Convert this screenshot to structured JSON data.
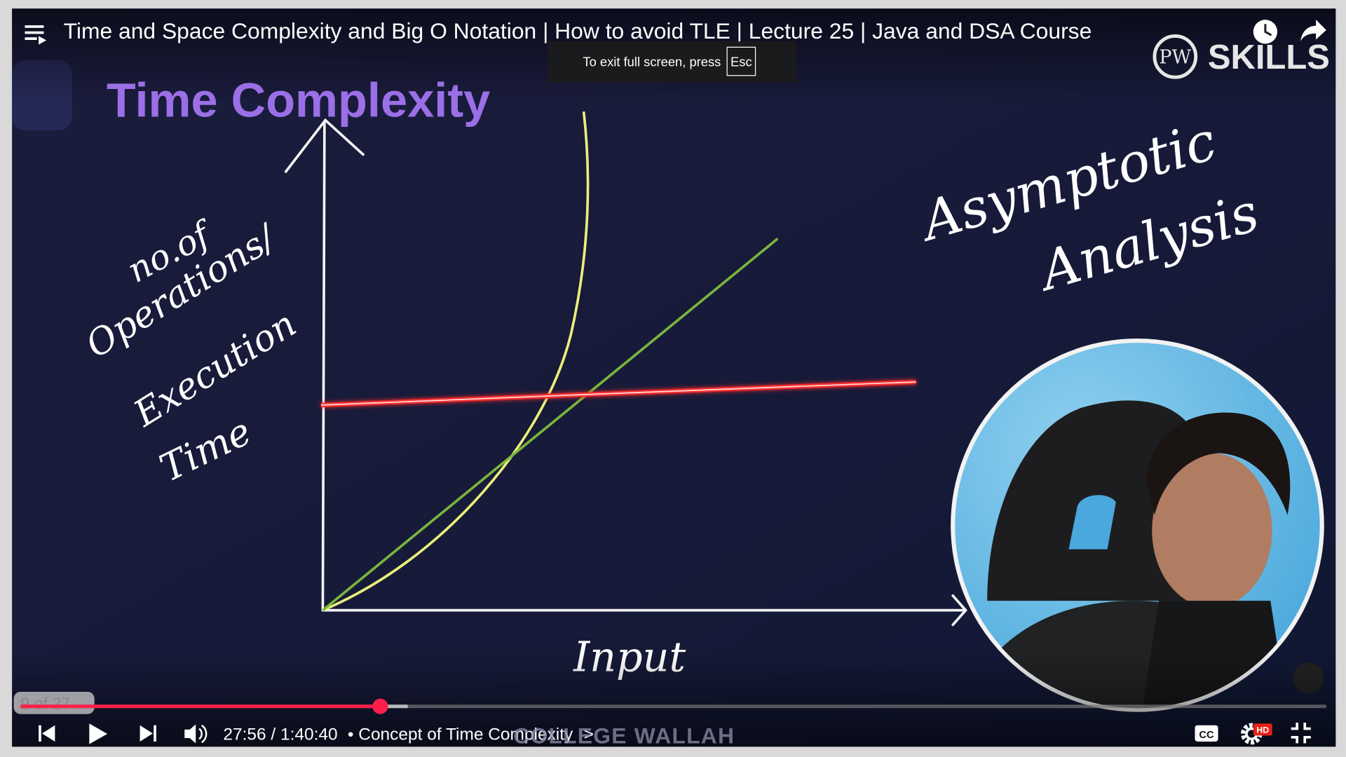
{
  "video": {
    "title": "Time and Space Complexity and Big O Notation | How to avoid TLE | Lecture 25 | Java and DSA Course",
    "toast": {
      "text": "To exit full screen, press",
      "key": "Esc"
    },
    "brand": {
      "monogram": "PW",
      "name": "SKILLS"
    }
  },
  "slide": {
    "heading": "Time Complexity",
    "y_label": [
      "no.of",
      "Operations/",
      "Execution",
      "Time"
    ],
    "x_label": "Input",
    "note": [
      "Asymptotic",
      "Analysis"
    ],
    "watermark": "COLLEGE WALLAH"
  },
  "player": {
    "chapter_count": "9 of 27",
    "time": "27:56 / 1:40:40",
    "chapter": "• Concept of Time Complexity",
    "chevron": ">",
    "cc": "CC",
    "quality": "HD"
  }
}
